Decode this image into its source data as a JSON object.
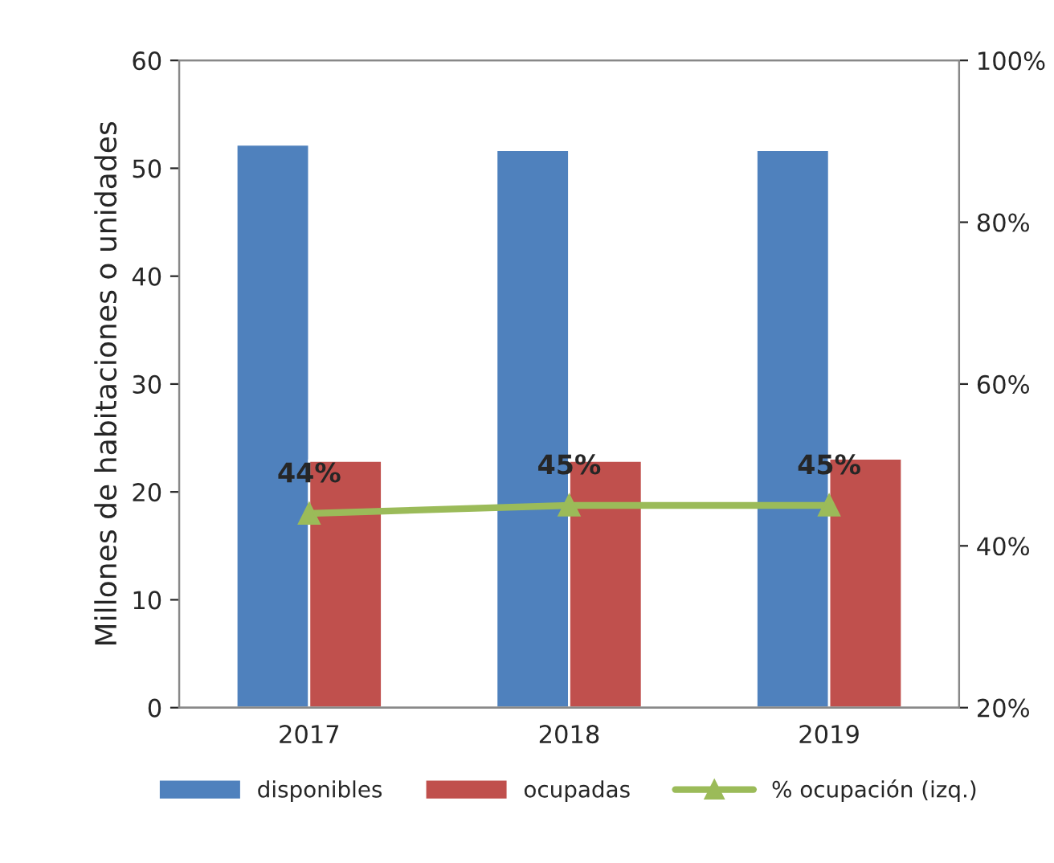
{
  "chart_data": {
    "type": "bar",
    "ylabel": "Millones de habitaciones o unidades",
    "categories": [
      "2017",
      "2018",
      "2019"
    ],
    "series": [
      {
        "name": "disponibles",
        "color": "#4f81bd",
        "values": [
          52.2,
          51.7,
          51.7
        ]
      },
      {
        "name": "ocupadas",
        "color": "#c0504d",
        "values": [
          22.9,
          22.9,
          23.1
        ]
      },
      {
        "name": "% ocupación (izq.)",
        "type": "line",
        "axis": "y2",
        "color": "#9bbb59",
        "marker": "triangle",
        "values": [
          44,
          45,
          45
        ],
        "value_labels": [
          "44%",
          "45%",
          "45%"
        ]
      }
    ],
    "ylim": [
      0,
      60
    ],
    "yticks": [
      0,
      10,
      20,
      30,
      40,
      50,
      60
    ],
    "y2lim": [
      20,
      100
    ],
    "y2ticks": [
      {
        "value": 20,
        "label": "20%"
      },
      {
        "value": 40,
        "label": "40%"
      },
      {
        "value": 60,
        "label": "60%"
      },
      {
        "value": 80,
        "label": "80%"
      },
      {
        "value": 100,
        "label": "100%"
      }
    ],
    "grid": false,
    "legend": "bottom"
  }
}
